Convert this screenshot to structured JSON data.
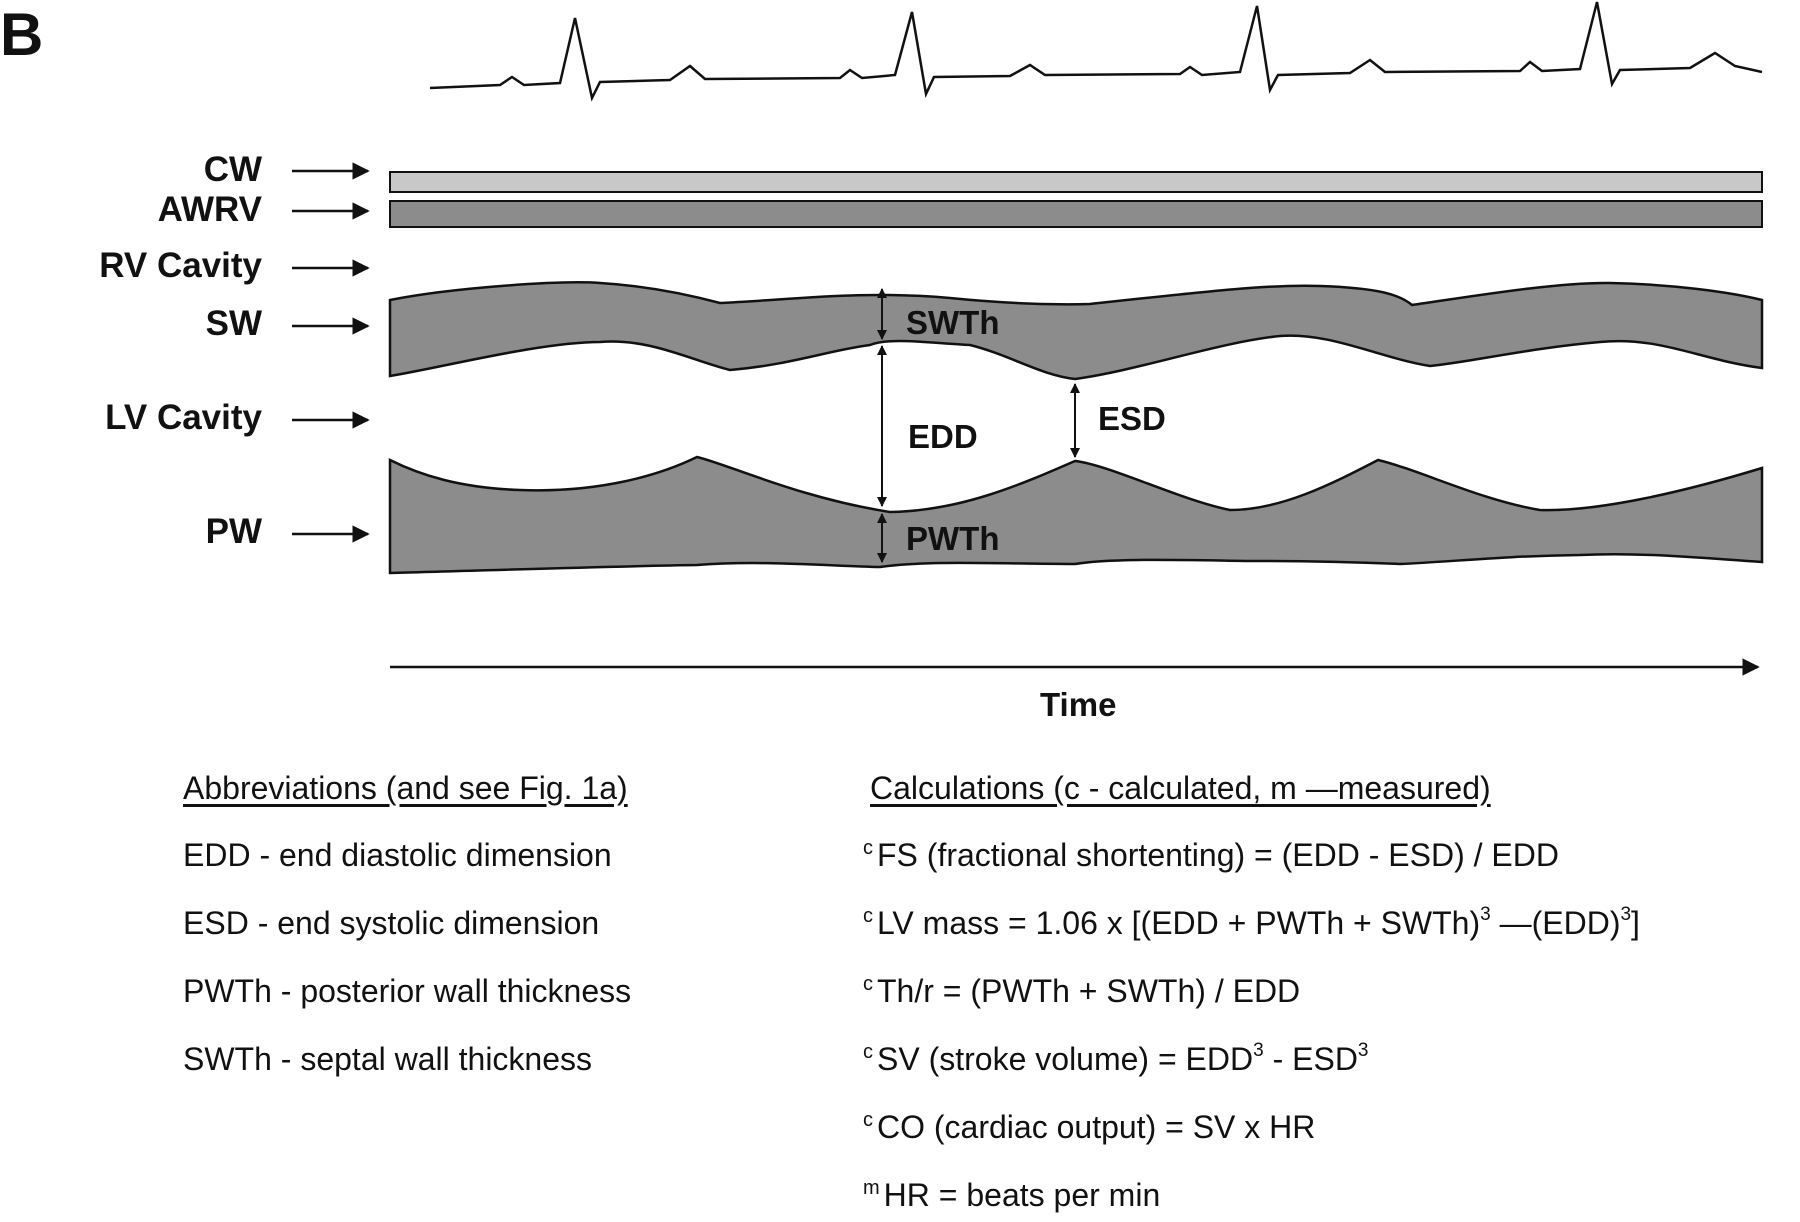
{
  "panel_label": "B",
  "track_labels": {
    "cw": "CW",
    "awrv": "AWRV",
    "rv_cavity": "RV Cavity",
    "sw": "SW",
    "lv_cavity": "LV Cavity",
    "pw": "PW"
  },
  "annotations": {
    "swth": "SWTh",
    "edd": "EDD",
    "esd": "ESD",
    "pwth": "PWTh"
  },
  "time_axis_label": "Time",
  "abbreviations": {
    "heading": "Abbreviations (and see Fig. 1a)",
    "items": [
      "EDD - end diastolic dimension",
      "ESD - end systolic dimension",
      "PWTh - posterior wall thickness",
      "SWTh - septal wall thickness"
    ]
  },
  "calculations": {
    "heading": "Calculations (c - calculated, m —measured)",
    "fs": {
      "prefix": "c",
      "text": "FS (fractional shortenting) =  (EDD - ESD) / EDD"
    },
    "lv_mass": {
      "prefix": "c",
      "a": "LV mass = 1.06 x [(EDD + PWTh + SWTh)",
      "exp1": "3",
      "b": " —(EDD)",
      "exp2": "3",
      "c": "]"
    },
    "thr": {
      "prefix": "c",
      "text": "Th/r = (PWTh + SWTh) / EDD"
    },
    "sv": {
      "prefix": "c",
      "a": "SV (stroke volume) = EDD",
      "exp1": "3",
      "b": " - ESD",
      "exp2": "3"
    },
    "co": {
      "prefix": "c",
      "text": "CO (cardiac output) = SV x HR"
    },
    "hr": {
      "prefix": "m",
      "text": "HR = beats per min"
    }
  },
  "colors": {
    "cw_fill": "#c8c8c8",
    "wall_fill": "#8c8c8c",
    "line": "#111111"
  }
}
